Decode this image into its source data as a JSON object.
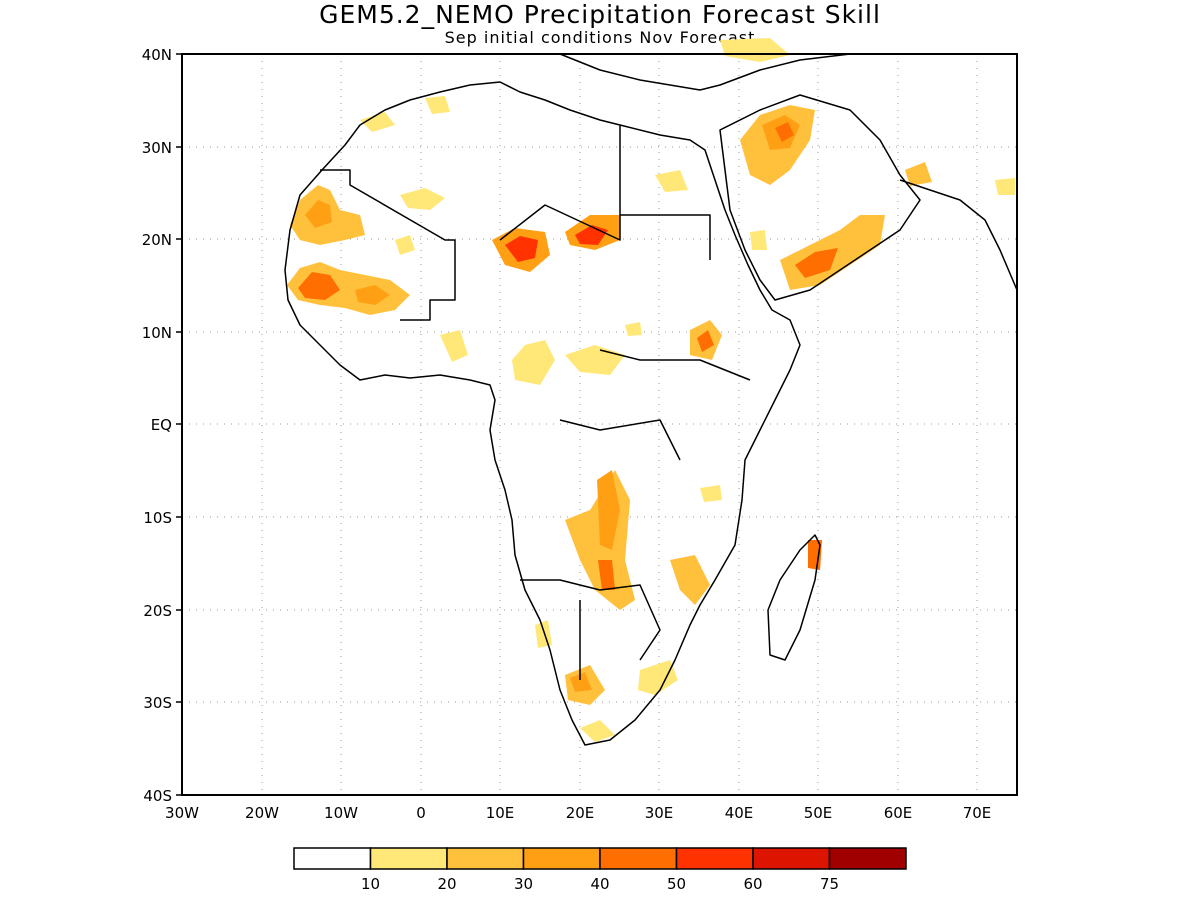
{
  "title": "GEM5.2_NEMO Precipitation Forecast Skill",
  "subtitle": "Sep initial conditions  Nov Forecast",
  "map": {
    "lon_range": [
      -30,
      75
    ],
    "lat_range": [
      -40,
      40
    ],
    "gridlines": "dotted",
    "lat_labels": [
      "40N",
      "30N",
      "20N",
      "10N",
      "EQ",
      "10S",
      "20S",
      "30S",
      "40S"
    ],
    "lon_labels": [
      "30W",
      "20W",
      "10W",
      "0",
      "10E",
      "20E",
      "30E",
      "40E",
      "50E",
      "60E",
      "70E"
    ]
  },
  "colorbar": {
    "labels": [
      "10",
      "20",
      "30",
      "40",
      "50",
      "60",
      "75"
    ],
    "colors": [
      "#ffffff",
      "#ffe878",
      "#ffc03c",
      "#ffa014",
      "#ff6e00",
      "#ff3200",
      "#dc1400",
      "#a00000"
    ]
  }
}
